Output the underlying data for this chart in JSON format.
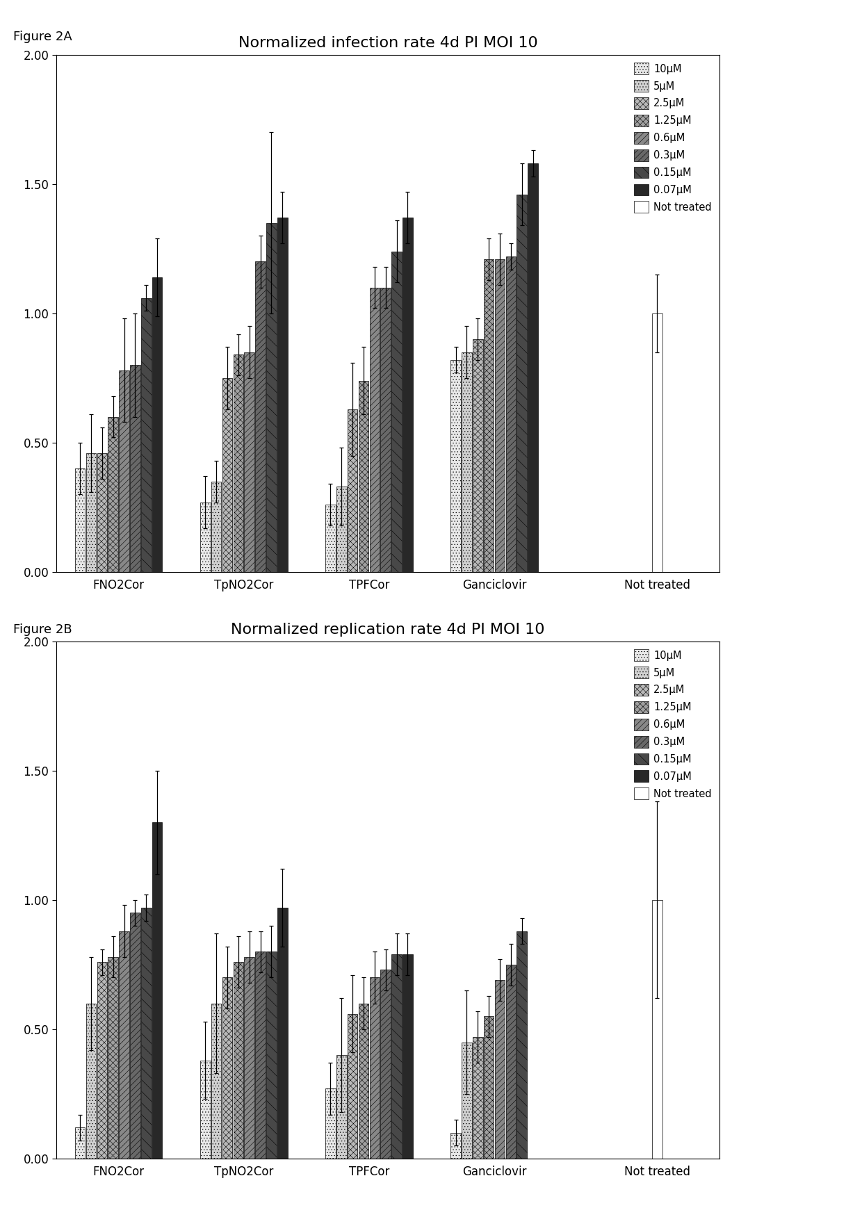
{
  "fig2a": {
    "title": "Normalized infection rate 4d PI MOI 10",
    "groups": [
      "FNO2Cor",
      "TpNO2Cor",
      "TPFCor",
      "Ganciclovir",
      "Not treated"
    ],
    "series_labels": [
      "10μM",
      "5μM",
      "2.5μM",
      "1.25μM",
      "0.6μM",
      "0.3μM",
      "0.15μM",
      "0.07μM",
      "Not treated"
    ],
    "values": [
      [
        0.4,
        0.46,
        0.46,
        0.6,
        0.78,
        0.8,
        1.06,
        1.14,
        null
      ],
      [
        0.27,
        0.35,
        0.75,
        0.84,
        0.85,
        1.2,
        1.35,
        1.37,
        null
      ],
      [
        0.26,
        0.33,
        0.63,
        0.74,
        1.1,
        1.1,
        1.24,
        1.37,
        null
      ],
      [
        0.82,
        0.85,
        0.9,
        1.21,
        1.21,
        1.22,
        1.46,
        1.58,
        null
      ],
      [
        null,
        null,
        null,
        null,
        null,
        null,
        null,
        null,
        1.0
      ]
    ],
    "errors": [
      [
        0.1,
        0.15,
        0.1,
        0.08,
        0.2,
        0.2,
        0.05,
        0.15,
        null
      ],
      [
        0.1,
        0.08,
        0.12,
        0.08,
        0.1,
        0.1,
        0.35,
        0.1,
        null
      ],
      [
        0.08,
        0.15,
        0.18,
        0.13,
        0.08,
        0.08,
        0.12,
        0.1,
        null
      ],
      [
        0.05,
        0.1,
        0.08,
        0.08,
        0.1,
        0.05,
        0.12,
        0.05,
        null
      ],
      [
        null,
        null,
        null,
        null,
        null,
        null,
        null,
        null,
        0.15
      ]
    ]
  },
  "fig2b": {
    "title": "Normalized replication rate 4d PI MOI 10",
    "groups": [
      "FNO2Cor",
      "TpNO2Cor",
      "TPFCor",
      "Ganciclovir",
      "Not treated"
    ],
    "series_labels": [
      "10μM",
      "5μM",
      "2.5μM",
      "1.25μM",
      "0.6μM",
      "0.3μM",
      "0.15μM",
      "0.07μM",
      "Not treated"
    ],
    "values": [
      [
        0.12,
        0.6,
        0.76,
        0.78,
        0.88,
        0.95,
        0.97,
        1.3,
        null
      ],
      [
        0.38,
        0.6,
        0.7,
        0.76,
        0.78,
        0.8,
        0.8,
        0.97,
        null
      ],
      [
        0.27,
        0.4,
        0.56,
        0.6,
        0.7,
        0.73,
        0.79,
        0.79,
        null
      ],
      [
        0.1,
        0.45,
        0.47,
        0.55,
        0.69,
        0.75,
        0.88,
        null,
        null
      ],
      [
        null,
        null,
        null,
        null,
        null,
        null,
        null,
        null,
        1.0
      ]
    ],
    "errors": [
      [
        0.05,
        0.18,
        0.05,
        0.08,
        0.1,
        0.05,
        0.05,
        0.2,
        null
      ],
      [
        0.15,
        0.27,
        0.12,
        0.1,
        0.1,
        0.08,
        0.1,
        0.15,
        null
      ],
      [
        0.1,
        0.22,
        0.15,
        0.1,
        0.1,
        0.08,
        0.08,
        0.08,
        null
      ],
      [
        0.05,
        0.2,
        0.1,
        0.08,
        0.08,
        0.08,
        0.05,
        null,
        null
      ],
      [
        null,
        null,
        null,
        null,
        null,
        null,
        null,
        null,
        0.38
      ]
    ]
  },
  "face_colors": [
    "#e8e8e8",
    "#d0d0d0",
    "#b8b8b8",
    "#a0a0a0",
    "#888888",
    "#686868",
    "#484848",
    "#282828",
    "#ffffff"
  ],
  "ylim": [
    0.0,
    2.0
  ],
  "yticks": [
    0.0,
    0.5,
    1.0,
    1.5,
    2.0
  ],
  "bar_width": 0.088,
  "group_centers": [
    0.0,
    1.0,
    2.0,
    3.0,
    4.3
  ],
  "figure_label_a": "Figure 2A",
  "figure_label_b": "Figure 2B"
}
